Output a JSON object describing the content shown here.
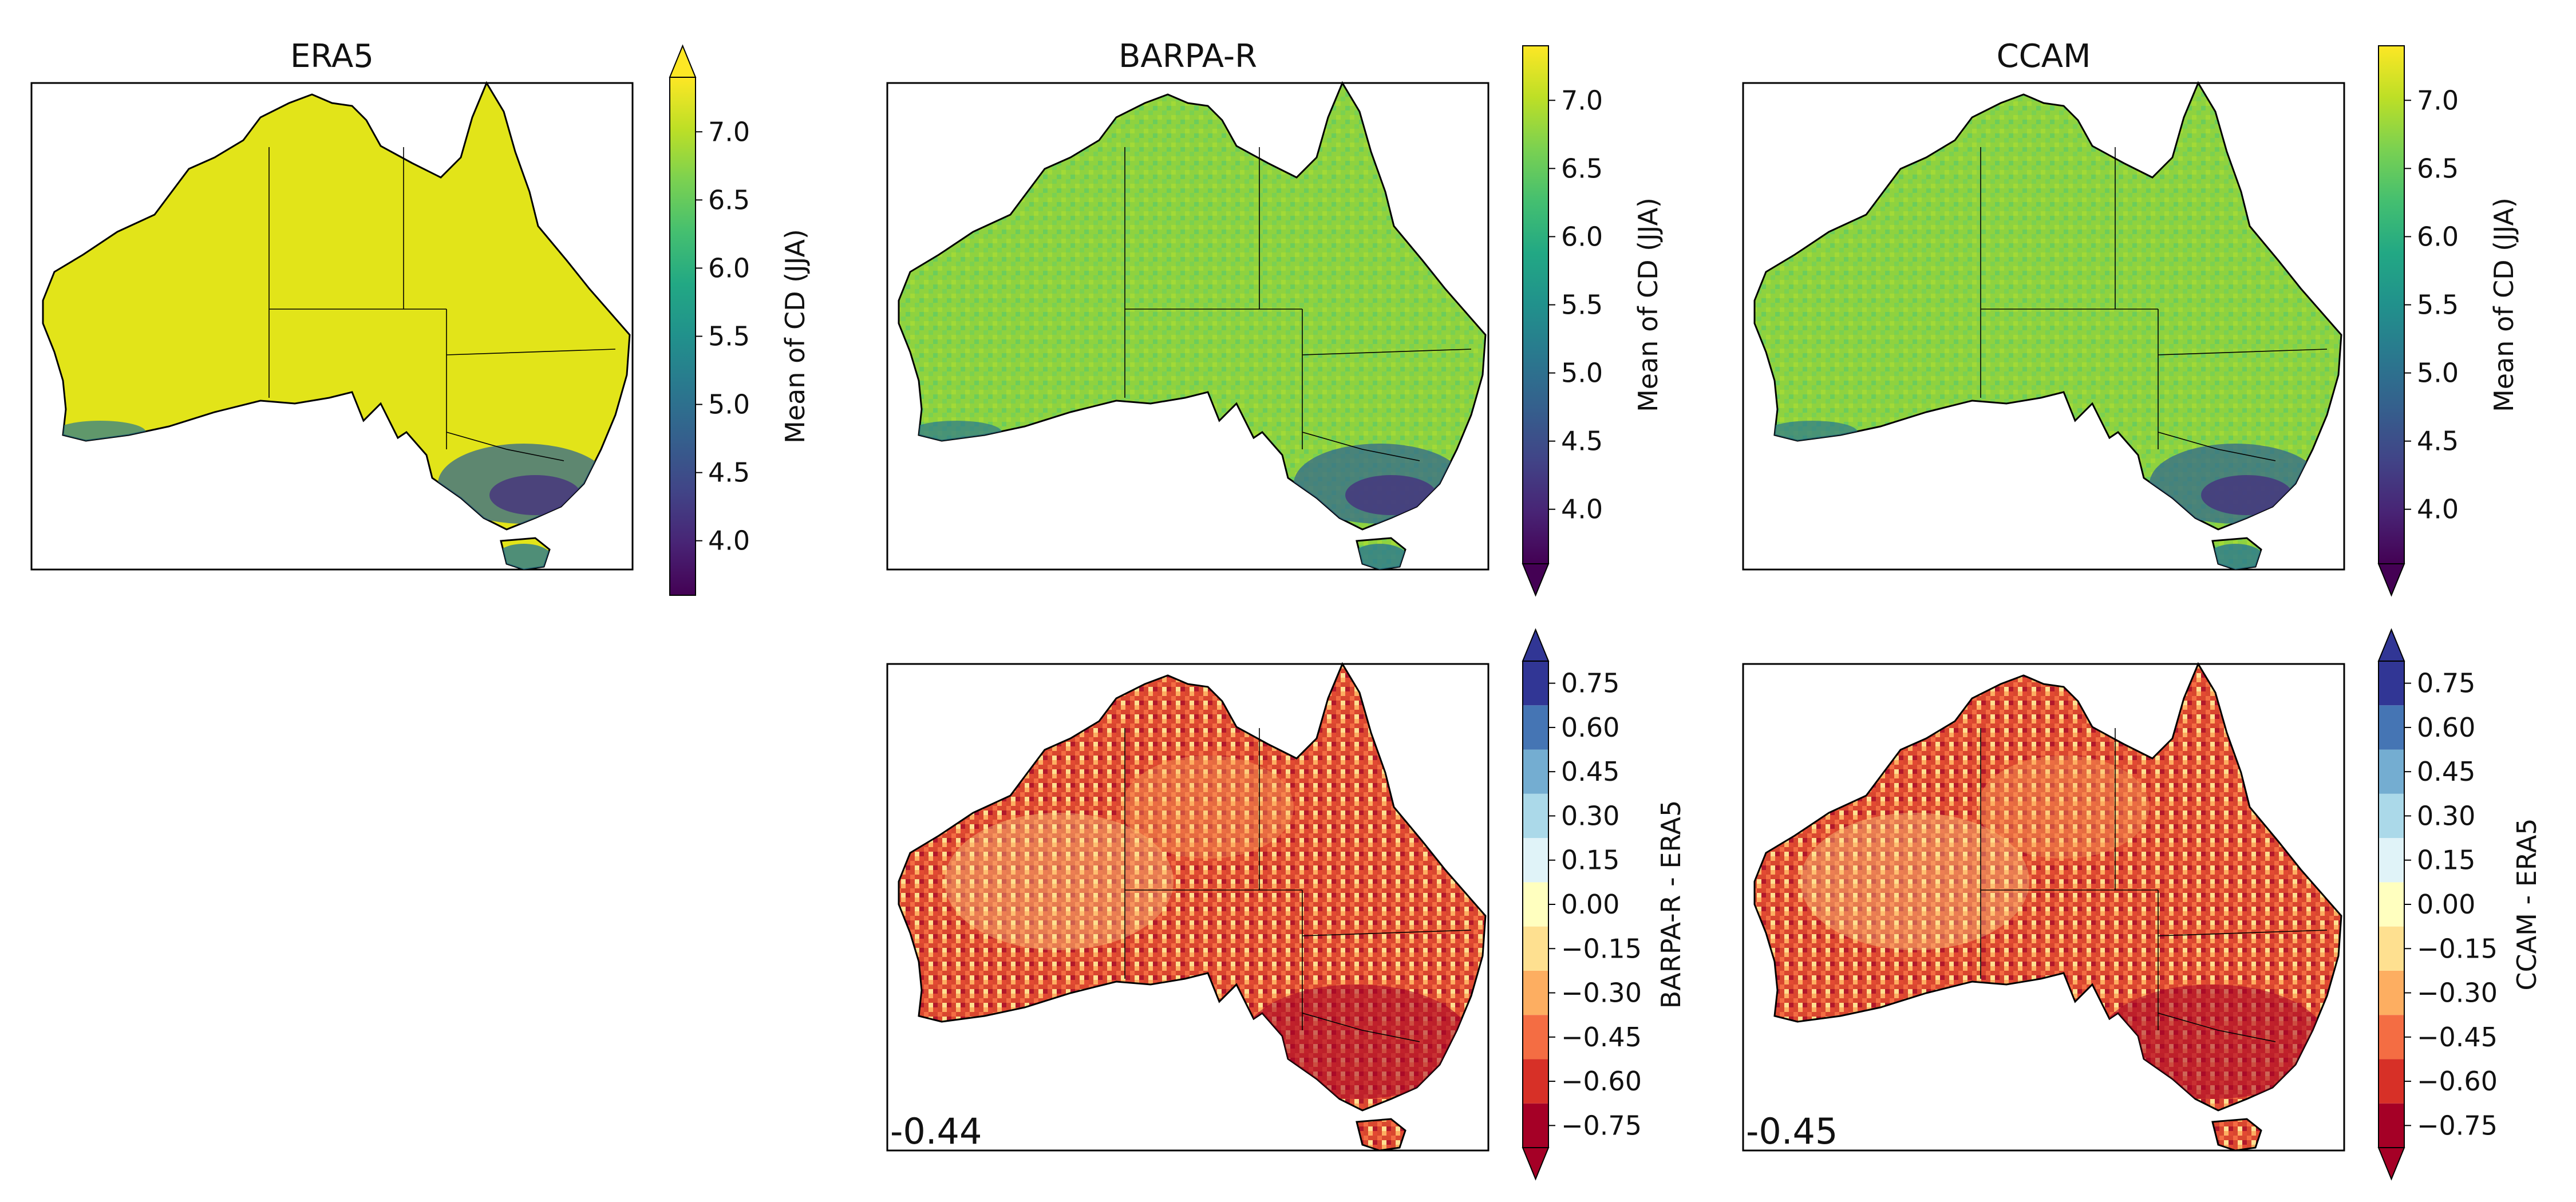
{
  "figure": {
    "panels": [
      {
        "id": "era5",
        "title": "ERA5",
        "kind": "mean",
        "stat": "",
        "colorbar": "mean_extend_max"
      },
      {
        "id": "barpa",
        "title": "BARPA-R",
        "kind": "mean",
        "stat": "",
        "colorbar": "mean_extend_min"
      },
      {
        "id": "ccam",
        "title": "CCAM",
        "kind": "mean",
        "stat": "",
        "colorbar": "mean_extend_min"
      },
      {
        "id": "barpa_diff",
        "title": "",
        "kind": "diff",
        "stat": "-0.44",
        "colorbar": "diff_barpa"
      },
      {
        "id": "ccam_diff",
        "title": "",
        "kind": "diff",
        "stat": "-0.45",
        "colorbar": "diff_ccam"
      }
    ]
  },
  "colorbars": {
    "mean": {
      "label": "Mean of CD (JJA)",
      "ticks": [
        "4.0",
        "4.5",
        "5.0",
        "5.5",
        "6.0",
        "6.5",
        "7.0"
      ],
      "range": [
        3.6,
        7.4
      ],
      "colormap": "viridis"
    },
    "diff_barpa": {
      "label": "BARPA-R - ERA5",
      "ticks": [
        "−0.75",
        "−0.60",
        "−0.45",
        "−0.30",
        "−0.15",
        "0.00",
        "0.15",
        "0.30",
        "0.45",
        "0.60",
        "0.75"
      ],
      "colors": [
        "#a50026",
        "#d73027",
        "#f46d43",
        "#fdae61",
        "#fee090",
        "#ffffbf",
        "#e0f3f8",
        "#abd9e9",
        "#74add1",
        "#4575b4",
        "#313695"
      ]
    },
    "diff_ccam": {
      "label": "CCAM - ERA5",
      "ticks": [
        "−0.75",
        "−0.60",
        "−0.45",
        "−0.30",
        "−0.15",
        "0.00",
        "0.15",
        "0.30",
        "0.45",
        "0.60",
        "0.75"
      ],
      "colors": [
        "#a50026",
        "#d73027",
        "#f46d43",
        "#fdae61",
        "#fee090",
        "#ffffbf",
        "#e0f3f8",
        "#abd9e9",
        "#74add1",
        "#4575b4",
        "#313695"
      ]
    }
  },
  "map_colors": {
    "era5_land": "#e2e419",
    "barpa_land": "#8fd23f",
    "ccam_land": "#93d541",
    "diff_land": "#d43d2a",
    "coast": "#000000"
  }
}
